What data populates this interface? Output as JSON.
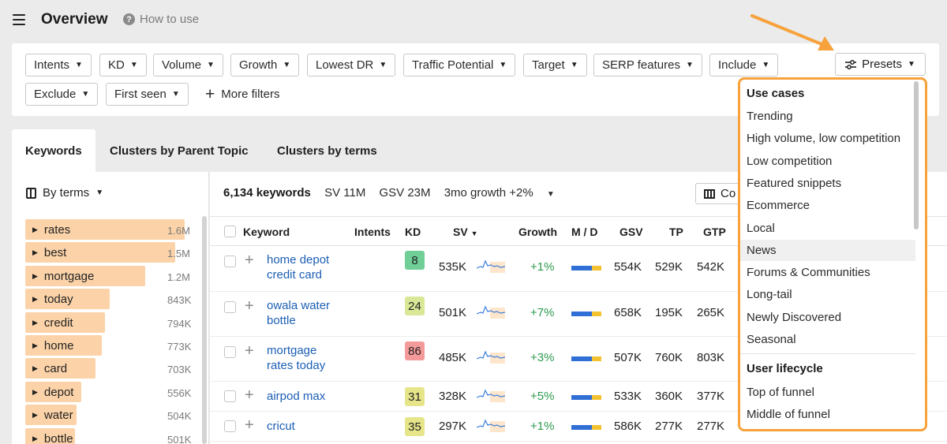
{
  "header": {
    "title": "Overview",
    "help_label": "How to use"
  },
  "filters": {
    "chips": [
      "Intents",
      "KD",
      "Volume",
      "Growth",
      "Lowest DR",
      "Traffic Potential",
      "Target",
      "SERP features",
      "Include",
      "Exclude",
      "First seen"
    ],
    "more_filters": "More filters",
    "presets": "Presets"
  },
  "tabs": [
    "Keywords",
    "Clusters by Parent Topic",
    "Clusters by terms"
  ],
  "left": {
    "by_terms": "By terms",
    "terms": [
      {
        "label": "rates",
        "count": "1.6M",
        "fill": 1.0
      },
      {
        "label": "best",
        "count": "1.5M",
        "fill": 0.94
      },
      {
        "label": "mortgage",
        "count": "1.2M",
        "fill": 0.75
      },
      {
        "label": "today",
        "count": "843K",
        "fill": 0.53
      },
      {
        "label": "credit",
        "count": "794K",
        "fill": 0.5
      },
      {
        "label": "home",
        "count": "773K",
        "fill": 0.48
      },
      {
        "label": "card",
        "count": "703K",
        "fill": 0.44
      },
      {
        "label": "depot",
        "count": "556K",
        "fill": 0.35
      },
      {
        "label": "water",
        "count": "504K",
        "fill": 0.32
      },
      {
        "label": "bottle",
        "count": "501K",
        "fill": 0.31
      }
    ]
  },
  "summary": {
    "keywords": "6,134 keywords",
    "sv": "SV 11M",
    "gsv": "GSV 23M",
    "growth": "3mo growth +2%",
    "columns_label": "Co"
  },
  "table": {
    "headers": {
      "keyword": "Keyword",
      "intents": "Intents",
      "kd": "KD",
      "sv": "SV",
      "growth": "Growth",
      "md": "M / D",
      "gsv": "GSV",
      "tp": "TP",
      "gtp": "GTP"
    },
    "rows": [
      {
        "keyword1": "home depot",
        "keyword2": "credit card",
        "kd": "8",
        "kd_color": "#6fcf97",
        "sv": "535K",
        "growth": "+1%",
        "gsv": "554K",
        "tp": "529K",
        "gtp": "542K"
      },
      {
        "keyword1": "owala water",
        "keyword2": "bottle",
        "kd": "24",
        "kd_color": "#d9e896",
        "sv": "501K",
        "growth": "+7%",
        "gsv": "658K",
        "tp": "195K",
        "gtp": "265K"
      },
      {
        "keyword1": "mortgage",
        "keyword2": "rates today",
        "kd": "86",
        "kd_color": "#f59a9a",
        "sv": "485K",
        "growth": "+3%",
        "gsv": "507K",
        "tp": "760K",
        "gtp": "803K"
      },
      {
        "keyword1": "airpod max",
        "keyword2": "",
        "kd": "31",
        "kd_color": "#e6e58a",
        "sv": "328K",
        "growth": "+5%",
        "gsv": "533K",
        "tp": "360K",
        "gtp": "377K"
      },
      {
        "keyword1": "cricut",
        "keyword2": "",
        "kd": "35",
        "kd_color": "#e6e58a",
        "sv": "297K",
        "growth": "+1%",
        "gsv": "586K",
        "tp": "277K",
        "gtp": "277K"
      }
    ]
  },
  "presets_dropdown": {
    "section1": "Use cases",
    "items1": [
      "Trending",
      "High volume, low competition",
      "Low competition",
      "Featured snippets",
      "Ecommerce",
      "Local",
      "News",
      "Forums & Communities",
      "Long-tail",
      "Newly Discovered",
      "Seasonal"
    ],
    "section2": "User lifecycle",
    "items2": [
      "Top of funnel",
      "Middle of funnel"
    ],
    "highlighted": "News"
  },
  "colors": {
    "accent_orange": "#f7a23b",
    "term_bar": "#fcd3a8",
    "link_blue": "#1c5fb5",
    "growth_green": "#2e9b4f",
    "md_blue": "#2f6fd6",
    "md_yellow": "#f2c230"
  }
}
